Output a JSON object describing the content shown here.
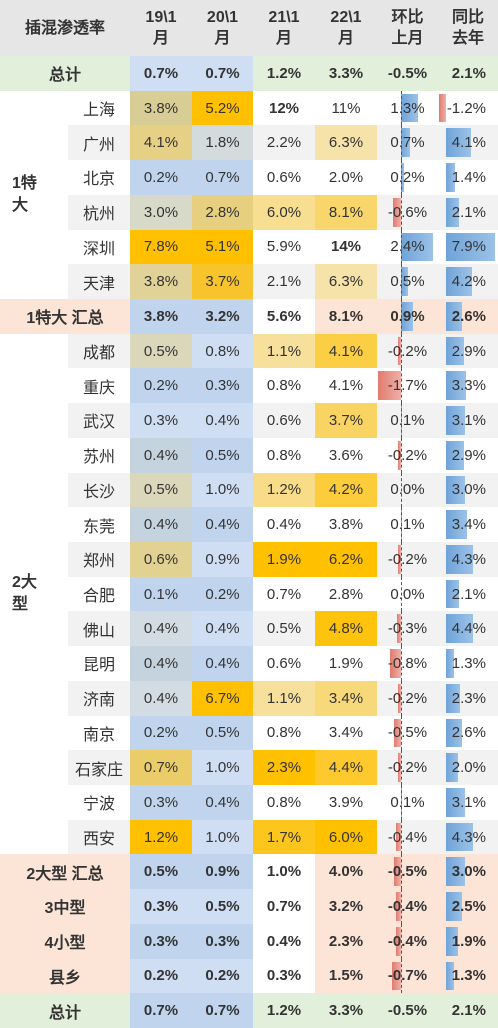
{
  "table": {
    "header": {
      "corner": "插混渗透率",
      "columns": [
        [
          "19\\1",
          "月"
        ],
        [
          "20\\1",
          "月"
        ],
        [
          "21\\1",
          "月"
        ],
        [
          "22\\1",
          "月"
        ],
        [
          "环比",
          "上月"
        ],
        [
          "同比",
          "去年"
        ]
      ]
    },
    "sections": [
      {
        "rows": [
          {
            "label": "总计",
            "cells": [
              "0.7%",
              "0.7%",
              "1.2%",
              "3.3%",
              "-0.5%",
              "2.1%"
            ]
          }
        ]
      },
      {
        "group": "1特大",
        "rows": [
          {
            "label": "上海",
            "cells": [
              "3.8%",
              "5.2%",
              "12%",
              "11%",
              "1.3%",
              "-1.2%"
            ]
          },
          {
            "label": "广州",
            "cells": [
              "4.1%",
              "1.8%",
              "2.2%",
              "6.3%",
              "0.7%",
              "4.1%"
            ]
          },
          {
            "label": "北京",
            "cells": [
              "0.2%",
              "0.7%",
              "0.6%",
              "2.0%",
              "0.2%",
              "1.4%"
            ]
          },
          {
            "label": "杭州",
            "cells": [
              "3.0%",
              "2.8%",
              "6.0%",
              "8.1%",
              "-0.6%",
              "2.1%"
            ]
          },
          {
            "label": "深圳",
            "cells": [
              "7.8%",
              "5.1%",
              "5.9%",
              "14%",
              "2.4%",
              "7.9%"
            ]
          },
          {
            "label": "天津",
            "cells": [
              "3.8%",
              "3.7%",
              "2.1%",
              "6.3%",
              "0.5%",
              "4.2%"
            ]
          }
        ]
      },
      {
        "rows": [
          {
            "label": "1特大 汇总",
            "cells": [
              "3.8%",
              "3.2%",
              "5.6%",
              "8.1%",
              "0.9%",
              "2.6%"
            ]
          }
        ]
      },
      {
        "group": "2大型",
        "rows": [
          {
            "label": "成都",
            "cells": [
              "0.5%",
              "0.8%",
              "1.1%",
              "4.1%",
              "-0.2%",
              "2.9%"
            ]
          },
          {
            "label": "重庆",
            "cells": [
              "0.2%",
              "0.3%",
              "0.8%",
              "4.1%",
              "-1.7%",
              "3.3%"
            ]
          },
          {
            "label": "武汉",
            "cells": [
              "0.3%",
              "0.4%",
              "0.6%",
              "3.7%",
              "0.1%",
              "3.1%"
            ]
          },
          {
            "label": "苏州",
            "cells": [
              "0.4%",
              "0.5%",
              "0.8%",
              "3.6%",
              "-0.2%",
              "2.9%"
            ]
          },
          {
            "label": "长沙",
            "cells": [
              "0.5%",
              "1.0%",
              "1.2%",
              "4.2%",
              "0.0%",
              "3.0%"
            ]
          },
          {
            "label": "东莞",
            "cells": [
              "0.4%",
              "0.4%",
              "0.4%",
              "3.8%",
              "0.1%",
              "3.4%"
            ]
          },
          {
            "label": "郑州",
            "cells": [
              "0.6%",
              "0.9%",
              "1.9%",
              "6.2%",
              "-0.2%",
              "4.3%"
            ]
          },
          {
            "label": "合肥",
            "cells": [
              "0.1%",
              "0.2%",
              "0.7%",
              "2.8%",
              "0.0%",
              "2.1%"
            ]
          },
          {
            "label": "佛山",
            "cells": [
              "0.4%",
              "0.4%",
              "0.5%",
              "4.8%",
              "-0.3%",
              "4.4%"
            ]
          },
          {
            "label": "昆明",
            "cells": [
              "0.4%",
              "0.4%",
              "0.6%",
              "1.9%",
              "-0.8%",
              "1.3%"
            ]
          },
          {
            "label": "济南",
            "cells": [
              "0.4%",
              "6.7%",
              "1.1%",
              "3.4%",
              "-0.2%",
              "2.3%"
            ]
          },
          {
            "label": "南京",
            "cells": [
              "0.2%",
              "0.5%",
              "0.8%",
              "3.4%",
              "-0.5%",
              "2.6%"
            ]
          },
          {
            "label": "石家庄",
            "cells": [
              "0.7%",
              "1.0%",
              "2.3%",
              "4.4%",
              "-0.2%",
              "2.0%"
            ]
          },
          {
            "label": "宁波",
            "cells": [
              "0.3%",
              "0.4%",
              "0.8%",
              "3.9%",
              "0.1%",
              "3.1%"
            ]
          },
          {
            "label": "西安",
            "cells": [
              "1.2%",
              "1.0%",
              "1.7%",
              "6.0%",
              "-0.4%",
              "4.3%"
            ]
          }
        ]
      },
      {
        "rows": [
          {
            "label": "2大型 汇总",
            "cells": [
              "0.5%",
              "0.9%",
              "1.0%",
              "4.0%",
              "-0.5%",
              "3.0%"
            ]
          },
          {
            "label": "3中型",
            "cells": [
              "0.3%",
              "0.5%",
              "0.7%",
              "3.2%",
              "-0.4%",
              "2.5%"
            ]
          },
          {
            "label": "4小型",
            "cells": [
              "0.3%",
              "0.3%",
              "0.4%",
              "2.3%",
              "-0.4%",
              "1.9%"
            ]
          },
          {
            "label": "县乡",
            "cells": [
              "0.2%",
              "0.2%",
              "0.3%",
              "1.5%",
              "-0.7%",
              "1.3%"
            ]
          },
          {
            "label": "总计",
            "cells": [
              "0.7%",
              "0.7%",
              "1.2%",
              "3.3%",
              "-0.5%",
              "2.1%"
            ]
          }
        ]
      }
    ]
  }
}
